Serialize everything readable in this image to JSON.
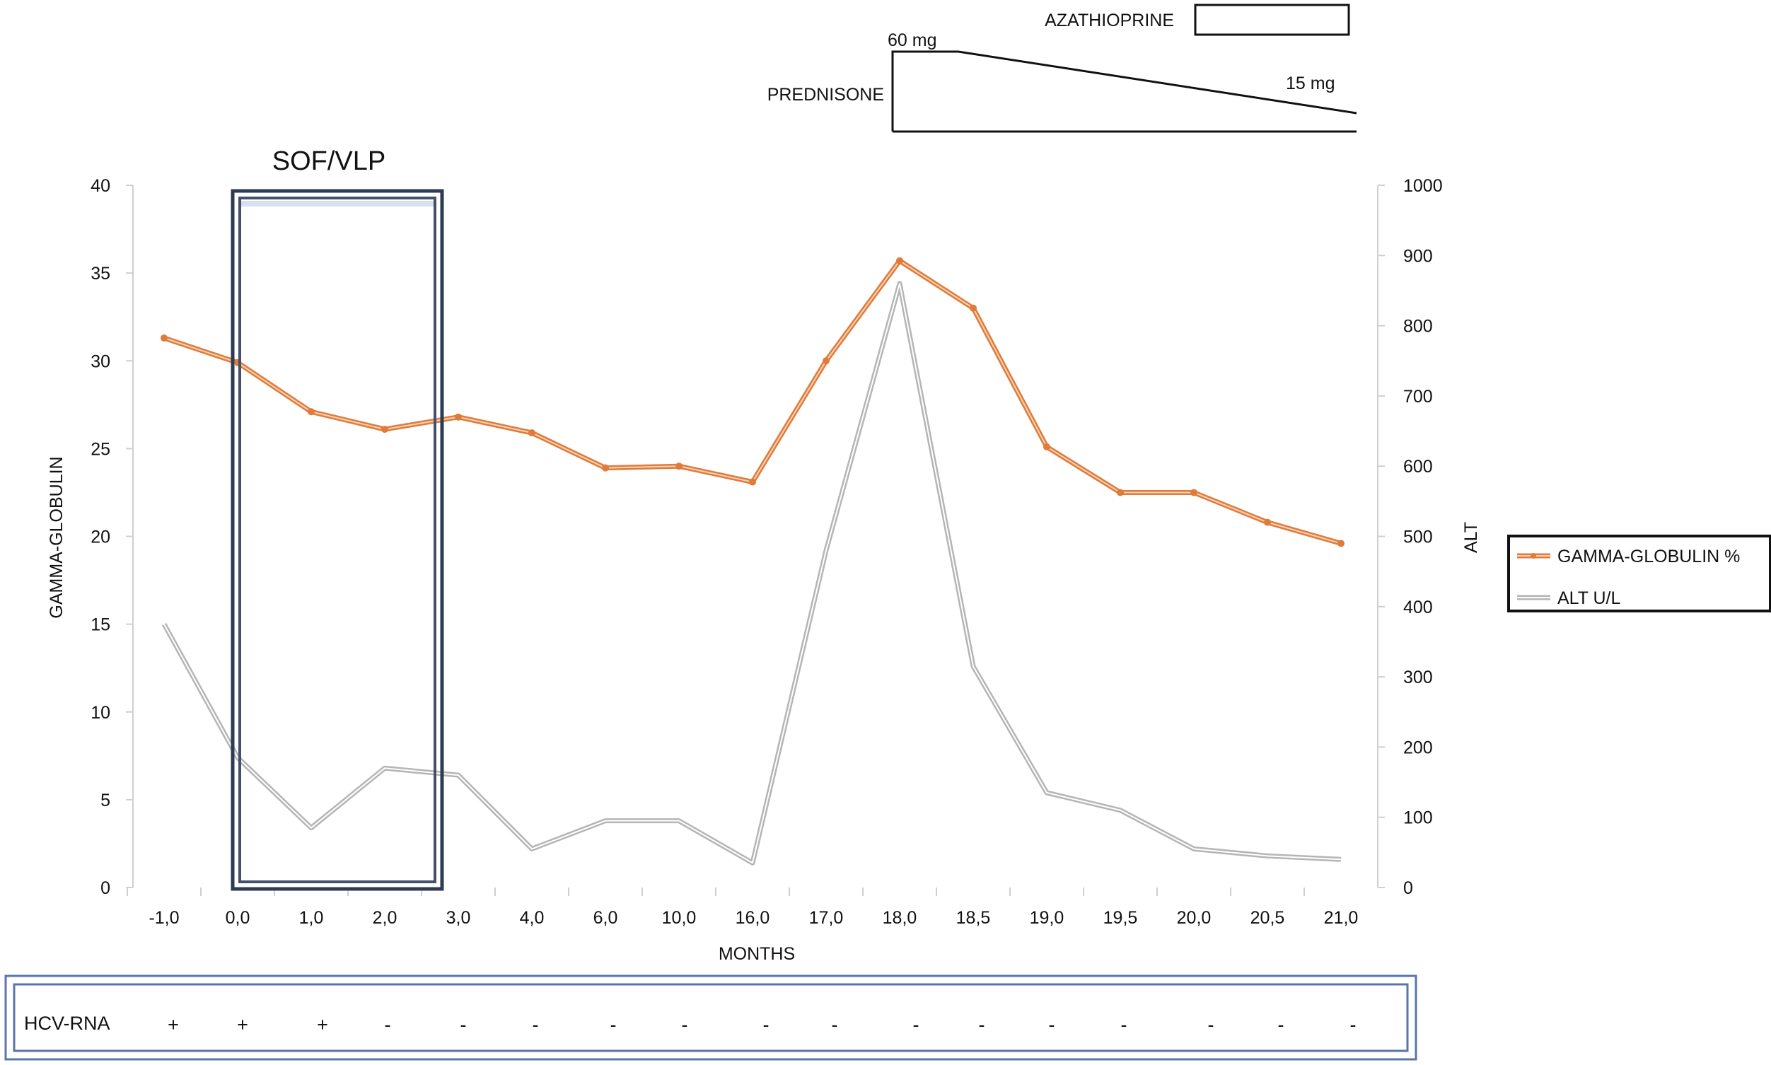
{
  "chart_data": {
    "type": "line",
    "categories": [
      "-1,0",
      "0,0",
      "1,0",
      "2,0",
      "3,0",
      "4,0",
      "6,0",
      "10,0",
      "16,0",
      "17,0",
      "18,0",
      "18,5",
      "19,0",
      "19,5",
      "20,0",
      "20,5",
      "21,0"
    ],
    "xlabel": "MONTHS",
    "y_left": {
      "label": "GAMMA-GLOBULIN",
      "range": [
        0,
        40
      ],
      "ticks": [
        0,
        5,
        10,
        15,
        20,
        25,
        30,
        35,
        40
      ]
    },
    "y_right": {
      "label": "ALT",
      "range": [
        0,
        1000
      ],
      "ticks": [
        0,
        100,
        200,
        300,
        400,
        500,
        600,
        700,
        800,
        900,
        1000
      ]
    },
    "series": [
      {
        "name": "GAMMA-GLOBULIN %",
        "axis": "left",
        "color": "#e07b39",
        "values": [
          31.3,
          29.9,
          27.1,
          26.1,
          26.8,
          25.9,
          23.9,
          24.0,
          23.1,
          30.0,
          35.7,
          33.0,
          25.1,
          22.5,
          22.5,
          20.8,
          19.6
        ]
      },
      {
        "name": "ALT U/L",
        "axis": "right",
        "color": "#b5b5b5",
        "values": [
          375,
          185,
          85,
          170,
          160,
          55,
          95,
          95,
          35,
          480,
          860,
          315,
          135,
          110,
          55,
          45,
          40
        ]
      }
    ],
    "legend": [
      "GAMMA-GLOBULIN %",
      "ALT U/L"
    ],
    "legend_position": "right",
    "annotations": {
      "treatment_box": "SOF/VLP",
      "drug_1": "AZATHIOPRINE",
      "drug_2": "PREDNISONE",
      "dose_start": "60 mg",
      "dose_end": "15 mg"
    },
    "hcv_rna": {
      "label": "HCV-RNA",
      "values": [
        "+",
        "+",
        "+",
        "-",
        "-",
        "-",
        "-",
        "-",
        "-",
        "-",
        "-",
        "-",
        "-",
        "-",
        "-",
        "-",
        "-"
      ]
    }
  }
}
